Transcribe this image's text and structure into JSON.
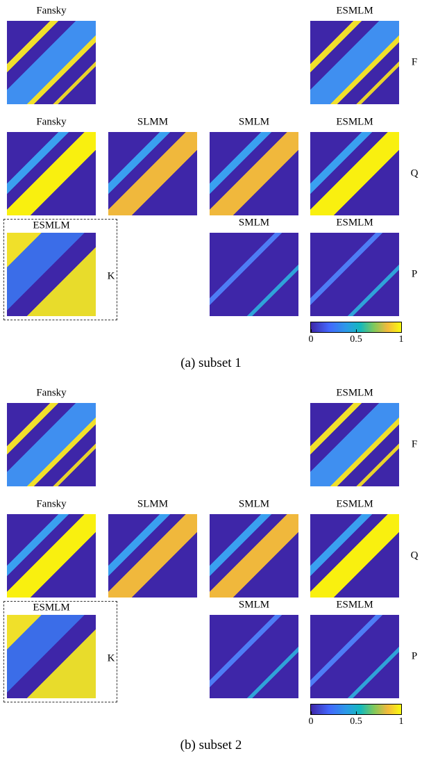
{
  "subfigures": [
    {
      "caption": "(a) subset 1",
      "rows": [
        {
          "label": "F",
          "panels": [
            {
              "title": "Fansky"
            },
            {
              "title": "ESMLM"
            }
          ]
        },
        {
          "label": "Q",
          "panels": [
            {
              "title": "Fansky"
            },
            {
              "title": "SLMM"
            },
            {
              "title": "SMLM"
            },
            {
              "title": "ESMLM"
            }
          ]
        },
        {
          "label": "P",
          "panels": [
            {
              "title": "SMLM"
            },
            {
              "title": "ESMLM"
            }
          ]
        }
      ],
      "k_box": {
        "label": "K",
        "title": "ESMLM"
      },
      "colorbar_ticks": [
        0,
        0.5,
        1
      ]
    },
    {
      "caption": "(b) subset 2",
      "rows": [
        {
          "label": "F",
          "panels": [
            {
              "title": "Fansky"
            },
            {
              "title": "ESMLM"
            }
          ]
        },
        {
          "label": "Q",
          "panels": [
            {
              "title": "Fansky"
            },
            {
              "title": "SLMM"
            },
            {
              "title": "SMLM"
            },
            {
              "title": "ESMLM"
            }
          ]
        },
        {
          "label": "P",
          "panels": [
            {
              "title": "SMLM"
            },
            {
              "title": "ESMLM"
            }
          ]
        }
      ],
      "k_box": {
        "label": "K",
        "title": "ESMLM"
      },
      "colorbar_ticks": [
        0,
        0.5,
        1
      ]
    }
  ]
}
